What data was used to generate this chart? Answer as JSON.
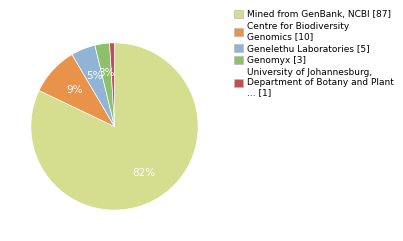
{
  "labels": [
    "Mined from GenBank, NCBI [87]",
    "Centre for Biodiversity\nGenomics [10]",
    "Genelethu Laboratories [5]",
    "Genomyx [3]",
    "University of Johannesburg,\nDepartment of Botany and Plant\n... [1]"
  ],
  "values": [
    87,
    10,
    5,
    3,
    1
  ],
  "colors": [
    "#d4de8e",
    "#e8924a",
    "#92b4d4",
    "#8dc06a",
    "#c0504d"
  ],
  "background_color": "#ffffff",
  "label_fontsize": 6.5,
  "pct_fontsize": 7.5
}
